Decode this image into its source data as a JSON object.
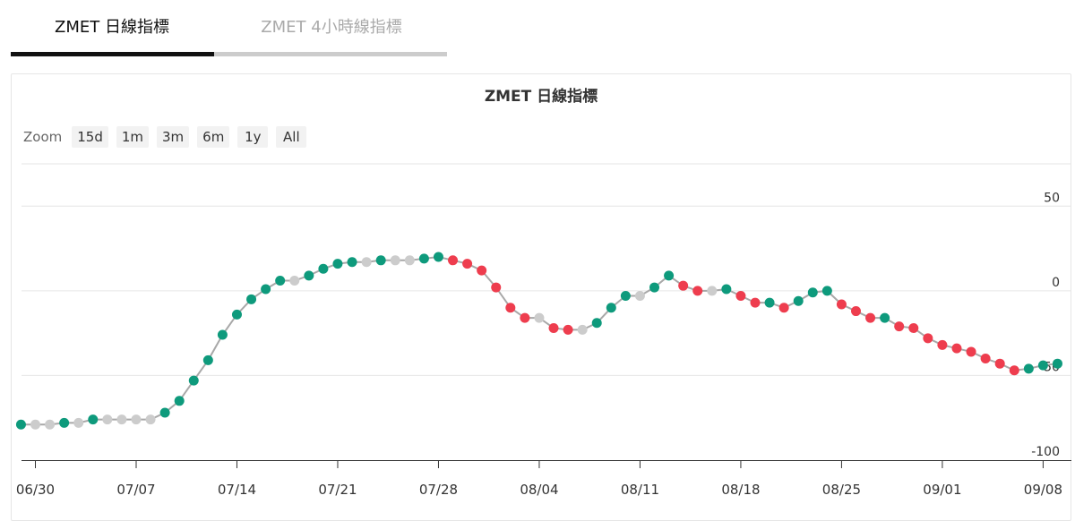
{
  "tabs": [
    {
      "label": "ZMET 日線指標",
      "active": true
    },
    {
      "label": "ZMET 4小時線指標",
      "active": false
    }
  ],
  "zoom": {
    "label": "Zoom",
    "buttons": [
      "15d",
      "1m",
      "3m",
      "6m",
      "1y",
      "All"
    ]
  },
  "colors": {
    "up": "#0e9a7c",
    "down": "#ee3d4e",
    "flat": "#cccccc",
    "line": "#a8a8a8",
    "grid": "#e6e6e6"
  },
  "chart_data": {
    "type": "line",
    "title": "ZMET 日線指標",
    "xlabel": "",
    "ylabel": "",
    "ylim": [
      -100,
      75
    ],
    "y_ticks": [
      50,
      0,
      -50,
      -100
    ],
    "x_tick_labels": [
      "06/30",
      "07/07",
      "07/14",
      "07/21",
      "07/28",
      "08/04",
      "08/11",
      "08/18",
      "08/25",
      "09/01",
      "09/08"
    ],
    "x_tick_dates": [
      "2024-06-30",
      "2024-07-07",
      "2024-07-14",
      "2024-07-21",
      "2024-07-28",
      "2024-08-04",
      "2024-08-11",
      "2024-08-18",
      "2024-08-25",
      "2024-09-01",
      "2024-09-08"
    ],
    "grid": true,
    "legend": "none",
    "series": [
      {
        "points": [
          {
            "date": "2024-06-29",
            "y": -79,
            "state": "up"
          },
          {
            "date": "2024-06-30",
            "y": -79,
            "state": "flat"
          },
          {
            "date": "2024-07-01",
            "y": -79,
            "state": "flat"
          },
          {
            "date": "2024-07-02",
            "y": -78,
            "state": "up"
          },
          {
            "date": "2024-07-03",
            "y": -78,
            "state": "flat"
          },
          {
            "date": "2024-07-04",
            "y": -76,
            "state": "up"
          },
          {
            "date": "2024-07-05",
            "y": -76,
            "state": "flat"
          },
          {
            "date": "2024-07-06",
            "y": -76,
            "state": "flat"
          },
          {
            "date": "2024-07-07",
            "y": -76,
            "state": "flat"
          },
          {
            "date": "2024-07-08",
            "y": -76,
            "state": "flat"
          },
          {
            "date": "2024-07-09",
            "y": -72,
            "state": "up"
          },
          {
            "date": "2024-07-10",
            "y": -65,
            "state": "up"
          },
          {
            "date": "2024-07-11",
            "y": -53,
            "state": "up"
          },
          {
            "date": "2024-07-12",
            "y": -41,
            "state": "up"
          },
          {
            "date": "2024-07-13",
            "y": -26,
            "state": "up"
          },
          {
            "date": "2024-07-14",
            "y": -14,
            "state": "up"
          },
          {
            "date": "2024-07-15",
            "y": -5,
            "state": "up"
          },
          {
            "date": "2024-07-16",
            "y": 1,
            "state": "up"
          },
          {
            "date": "2024-07-17",
            "y": 6,
            "state": "up"
          },
          {
            "date": "2024-07-18",
            "y": 6,
            "state": "flat"
          },
          {
            "date": "2024-07-19",
            "y": 9,
            "state": "up"
          },
          {
            "date": "2024-07-20",
            "y": 13,
            "state": "up"
          },
          {
            "date": "2024-07-21",
            "y": 16,
            "state": "up"
          },
          {
            "date": "2024-07-22",
            "y": 17,
            "state": "up"
          },
          {
            "date": "2024-07-23",
            "y": 17,
            "state": "flat"
          },
          {
            "date": "2024-07-24",
            "y": 18,
            "state": "up"
          },
          {
            "date": "2024-07-25",
            "y": 18,
            "state": "flat"
          },
          {
            "date": "2024-07-26",
            "y": 18,
            "state": "flat"
          },
          {
            "date": "2024-07-27",
            "y": 19,
            "state": "up"
          },
          {
            "date": "2024-07-28",
            "y": 20,
            "state": "up"
          },
          {
            "date": "2024-07-29",
            "y": 18,
            "state": "down"
          },
          {
            "date": "2024-07-30",
            "y": 16,
            "state": "down"
          },
          {
            "date": "2024-07-31",
            "y": 12,
            "state": "down"
          },
          {
            "date": "2024-08-01",
            "y": 2,
            "state": "down"
          },
          {
            "date": "2024-08-02",
            "y": -10,
            "state": "down"
          },
          {
            "date": "2024-08-03",
            "y": -16,
            "state": "down"
          },
          {
            "date": "2024-08-04",
            "y": -16,
            "state": "flat"
          },
          {
            "date": "2024-08-05",
            "y": -22,
            "state": "down"
          },
          {
            "date": "2024-08-06",
            "y": -23,
            "state": "down"
          },
          {
            "date": "2024-08-07",
            "y": -23,
            "state": "flat"
          },
          {
            "date": "2024-08-08",
            "y": -19,
            "state": "up"
          },
          {
            "date": "2024-08-09",
            "y": -10,
            "state": "up"
          },
          {
            "date": "2024-08-10",
            "y": -3,
            "state": "up"
          },
          {
            "date": "2024-08-11",
            "y": -3,
            "state": "flat"
          },
          {
            "date": "2024-08-12",
            "y": 2,
            "state": "up"
          },
          {
            "date": "2024-08-13",
            "y": 9,
            "state": "up"
          },
          {
            "date": "2024-08-14",
            "y": 3,
            "state": "down"
          },
          {
            "date": "2024-08-15",
            "y": 0,
            "state": "down"
          },
          {
            "date": "2024-08-16",
            "y": 0,
            "state": "flat"
          },
          {
            "date": "2024-08-17",
            "y": 1,
            "state": "up"
          },
          {
            "date": "2024-08-18",
            "y": -3,
            "state": "down"
          },
          {
            "date": "2024-08-19",
            "y": -7,
            "state": "down"
          },
          {
            "date": "2024-08-20",
            "y": -7,
            "state": "up"
          },
          {
            "date": "2024-08-21",
            "y": -10,
            "state": "down"
          },
          {
            "date": "2024-08-22",
            "y": -6,
            "state": "up"
          },
          {
            "date": "2024-08-23",
            "y": -1,
            "state": "up"
          },
          {
            "date": "2024-08-24",
            "y": 0,
            "state": "up"
          },
          {
            "date": "2024-08-25",
            "y": -8,
            "state": "down"
          },
          {
            "date": "2024-08-26",
            "y": -12,
            "state": "down"
          },
          {
            "date": "2024-08-27",
            "y": -16,
            "state": "down"
          },
          {
            "date": "2024-08-28",
            "y": -16,
            "state": "up"
          },
          {
            "date": "2024-08-29",
            "y": -21,
            "state": "down"
          },
          {
            "date": "2024-08-30",
            "y": -22,
            "state": "down"
          },
          {
            "date": "2024-08-31",
            "y": -28,
            "state": "down"
          },
          {
            "date": "2024-09-01",
            "y": -32,
            "state": "down"
          },
          {
            "date": "2024-09-02",
            "y": -34,
            "state": "down"
          },
          {
            "date": "2024-09-03",
            "y": -36,
            "state": "down"
          },
          {
            "date": "2024-09-04",
            "y": -40,
            "state": "down"
          },
          {
            "date": "2024-09-05",
            "y": -43,
            "state": "down"
          },
          {
            "date": "2024-09-06",
            "y": -47,
            "state": "down"
          },
          {
            "date": "2024-09-07",
            "y": -46,
            "state": "up"
          },
          {
            "date": "2024-09-08",
            "y": -44,
            "state": "up"
          },
          {
            "date": "2024-09-09",
            "y": -43,
            "state": "up"
          }
        ]
      }
    ]
  }
}
